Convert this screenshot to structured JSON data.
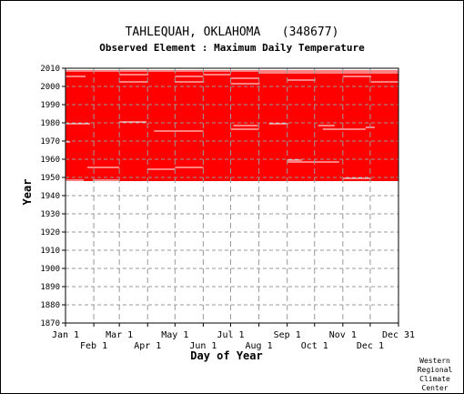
{
  "chart_data": {
    "type": "heatmap",
    "title": "TAHLEQUAH, OKLAHOMA   (348677)",
    "subtitle": "Observed Element : Maximum Daily Temperature",
    "xlabel": "Day of Year",
    "ylabel": "Year",
    "ylim": [
      1870,
      2010
    ],
    "y_ticks": [
      1870,
      1880,
      1890,
      1900,
      1910,
      1920,
      1930,
      1940,
      1950,
      1960,
      1970,
      1980,
      1990,
      2000,
      2010
    ],
    "xlim": [
      1,
      366
    ],
    "x_ticks_top": [
      {
        "label": "Jan 1",
        "day": 1
      },
      {
        "label": "Mar 1",
        "day": 60
      },
      {
        "label": "May 1",
        "day": 121
      },
      {
        "label": "Jul 1",
        "day": 182
      },
      {
        "label": "Sep 1",
        "day": 244
      },
      {
        "label": "Nov 1",
        "day": 305
      },
      {
        "label": "Dec 31",
        "day": 366
      }
    ],
    "x_ticks_bottom": [
      {
        "label": "Feb 1",
        "day": 32
      },
      {
        "label": "Apr 1",
        "day": 91
      },
      {
        "label": "Jun 1",
        "day": 152
      },
      {
        "label": "Aug 1",
        "day": 213
      },
      {
        "label": "Oct 1",
        "day": 274
      },
      {
        "label": "Dec 1",
        "day": 335
      }
    ],
    "record_start_year": 1948,
    "record_end_year": 2008,
    "data_color": "#ff0000",
    "grid": true,
    "missing_periods": [
      {
        "year": 2008,
        "start_day": 1,
        "end_day": 366
      },
      {
        "year": 2007,
        "start_day": 213,
        "end_day": 366
      },
      {
        "year": 2006,
        "start_day": 60,
        "end_day": 92
      },
      {
        "year": 2006,
        "start_day": 152,
        "end_day": 182
      },
      {
        "year": 2005,
        "start_day": 1,
        "end_day": 23
      },
      {
        "year": 2005,
        "start_day": 121,
        "end_day": 152
      },
      {
        "year": 2005,
        "start_day": 305,
        "end_day": 336
      },
      {
        "year": 2004,
        "start_day": 182,
        "end_day": 213
      },
      {
        "year": 2003,
        "start_day": 244,
        "end_day": 275
      },
      {
        "year": 2002,
        "start_day": 60,
        "end_day": 91
      },
      {
        "year": 2002,
        "start_day": 121,
        "end_day": 153
      },
      {
        "year": 2002,
        "start_day": 336,
        "end_day": 366
      },
      {
        "year": 2001,
        "start_day": 182,
        "end_day": 214
      },
      {
        "year": 1980,
        "start_day": 60,
        "end_day": 90
      },
      {
        "year": 1979,
        "start_day": 1,
        "end_day": 28
      },
      {
        "year": 1979,
        "start_day": 224,
        "end_day": 245
      },
      {
        "year": 1978,
        "start_day": 185,
        "end_day": 212
      },
      {
        "year": 1978,
        "start_day": 278,
        "end_day": 296
      },
      {
        "year": 1977,
        "start_day": 330,
        "end_day": 340
      },
      {
        "year": 1976,
        "start_day": 182,
        "end_day": 213
      },
      {
        "year": 1976,
        "start_day": 283,
        "end_day": 330
      },
      {
        "year": 1975,
        "start_day": 98,
        "end_day": 152
      },
      {
        "year": 1969,
        "start_day": 1,
        "end_day": 6
      },
      {
        "year": 1959,
        "start_day": 244,
        "end_day": 260
      },
      {
        "year": 1958,
        "start_day": 244,
        "end_day": 301
      },
      {
        "year": 1955,
        "start_day": 25,
        "end_day": 60
      },
      {
        "year": 1955,
        "start_day": 121,
        "end_day": 152
      },
      {
        "year": 1954,
        "start_day": 91,
        "end_day": 121
      },
      {
        "year": 1949,
        "start_day": 305,
        "end_day": 336
      },
      {
        "year": 1948,
        "start_day": 1,
        "end_day": 21
      },
      {
        "year": 1948,
        "start_day": 31,
        "end_day": 60
      }
    ]
  },
  "footer": {
    "credit_lines": [
      "Western",
      "Regional",
      "Climate",
      "Center"
    ]
  }
}
